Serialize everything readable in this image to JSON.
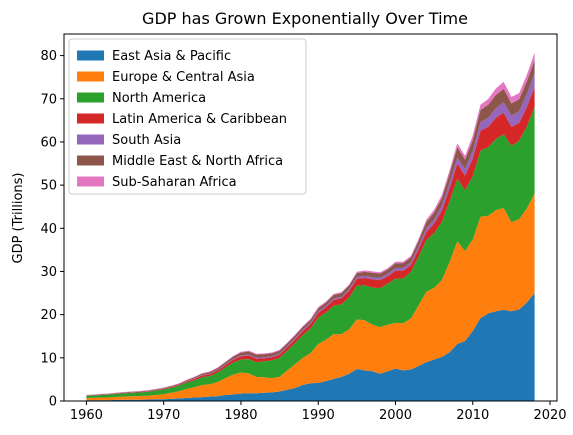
{
  "chart_data": {
    "type": "area",
    "stacked": true,
    "title": "GDP has Grown Exponentially Over Time",
    "xlabel": "",
    "ylabel": "GDP (Trillions)",
    "xlim": [
      1957.1,
      2020.9
    ],
    "ylim": [
      0,
      85
    ],
    "xticks": [
      1960,
      1970,
      1980,
      1990,
      2000,
      2010,
      2020
    ],
    "yticks": [
      0,
      10,
      20,
      30,
      40,
      50,
      60,
      70,
      80
    ],
    "legend_position": "upper-left",
    "grid": false,
    "x": [
      1960,
      1961,
      1962,
      1963,
      1964,
      1965,
      1966,
      1967,
      1968,
      1969,
      1970,
      1971,
      1972,
      1973,
      1974,
      1975,
      1976,
      1977,
      1978,
      1979,
      1980,
      1981,
      1982,
      1983,
      1984,
      1985,
      1986,
      1987,
      1988,
      1989,
      1990,
      1991,
      1992,
      1993,
      1994,
      1995,
      1996,
      1997,
      1998,
      1999,
      2000,
      2001,
      2002,
      2003,
      2004,
      2005,
      2006,
      2007,
      2008,
      2009,
      2010,
      2011,
      2012,
      2013,
      2014,
      2015,
      2016,
      2017,
      2018
    ],
    "series": [
      {
        "name": "East Asia & Pacific",
        "color": "#1f77b4",
        "values": [
          0.2,
          0.2,
          0.2,
          0.2,
          0.25,
          0.3,
          0.3,
          0.3,
          0.35,
          0.4,
          0.4,
          0.5,
          0.6,
          0.7,
          0.8,
          0.9,
          1.0,
          1.1,
          1.4,
          1.5,
          1.7,
          1.8,
          1.8,
          1.9,
          2.0,
          2.2,
          2.6,
          3.0,
          3.7,
          4.1,
          4.2,
          4.6,
          5.1,
          5.6,
          6.3,
          7.4,
          7.1,
          6.9,
          6.3,
          6.9,
          7.5,
          7.1,
          7.3,
          8.1,
          9.0,
          9.6,
          10.2,
          11.3,
          13.2,
          13.9,
          16.2,
          19.2,
          20.3,
          20.8,
          21.1,
          20.8,
          21.2,
          22.8,
          25.0
        ]
      },
      {
        "name": "Europe & Central Asia",
        "color": "#ff7f0e",
        "values": [
          0.5,
          0.55,
          0.6,
          0.65,
          0.7,
          0.75,
          0.8,
          0.85,
          0.9,
          1.0,
          1.2,
          1.4,
          1.7,
          2.1,
          2.4,
          2.8,
          2.9,
          3.3,
          3.9,
          4.6,
          4.9,
          4.6,
          3.8,
          3.6,
          3.3,
          3.4,
          4.5,
          5.5,
          6.3,
          7.0,
          9.0,
          9.6,
          10.4,
          9.9,
          10.3,
          11.5,
          11.6,
          10.8,
          10.8,
          10.8,
          10.6,
          10.9,
          11.8,
          14.1,
          16.3,
          16.6,
          17.8,
          20.9,
          23.8,
          20.8,
          21.2,
          23.5,
          22.6,
          23.4,
          23.6,
          20.6,
          20.9,
          21.8,
          23.1
        ]
      },
      {
        "name": "North America",
        "color": "#2ca02c",
        "values": [
          0.5,
          0.55,
          0.6,
          0.65,
          0.7,
          0.75,
          0.8,
          0.85,
          0.9,
          1.0,
          1.1,
          1.2,
          1.3,
          1.5,
          1.6,
          1.8,
          1.9,
          2.2,
          2.5,
          2.8,
          3.0,
          3.3,
          3.4,
          3.7,
          4.1,
          4.4,
          4.6,
          4.9,
          5.3,
          5.7,
          6.1,
          6.3,
          6.6,
          6.9,
          7.4,
          7.8,
          8.1,
          8.6,
          9.0,
          9.5,
          10.2,
          10.4,
          10.8,
          11.3,
          12.0,
          12.7,
          13.5,
          14.1,
          14.5,
          14.1,
          14.7,
          15.3,
          15.9,
          16.5,
          17.1,
          17.7,
          18.2,
          19.0,
          20.0
        ]
      },
      {
        "name": "Latin America & Caribbean",
        "color": "#d62728",
        "values": [
          0.08,
          0.09,
          0.1,
          0.1,
          0.11,
          0.12,
          0.13,
          0.14,
          0.15,
          0.16,
          0.18,
          0.2,
          0.22,
          0.28,
          0.35,
          0.4,
          0.45,
          0.5,
          0.55,
          0.65,
          0.75,
          0.85,
          0.8,
          0.7,
          0.72,
          0.75,
          0.8,
          0.85,
          0.9,
          1.0,
          1.1,
          1.2,
          1.3,
          1.4,
          1.5,
          1.6,
          1.7,
          1.9,
          1.9,
          1.7,
          1.9,
          1.8,
          1.6,
          1.7,
          1.9,
          2.2,
          2.6,
          3.0,
          3.5,
          3.4,
          4.0,
          4.6,
          4.7,
          4.9,
          5.0,
          4.4,
          4.1,
          4.5,
          4.6
        ]
      },
      {
        "name": "South Asia",
        "color": "#9467bd",
        "values": [
          0.05,
          0.05,
          0.06,
          0.06,
          0.07,
          0.07,
          0.07,
          0.07,
          0.08,
          0.08,
          0.08,
          0.09,
          0.09,
          0.1,
          0.11,
          0.12,
          0.12,
          0.13,
          0.15,
          0.17,
          0.2,
          0.22,
          0.23,
          0.24,
          0.25,
          0.26,
          0.28,
          0.3,
          0.32,
          0.34,
          0.36,
          0.34,
          0.35,
          0.36,
          0.39,
          0.44,
          0.47,
          0.5,
          0.52,
          0.56,
          0.6,
          0.62,
          0.65,
          0.75,
          0.85,
          0.95,
          1.1,
          1.3,
          1.4,
          1.5,
          1.8,
          2.0,
          2.1,
          2.2,
          2.4,
          2.6,
          2.7,
          3.0,
          3.2
        ]
      },
      {
        "name": "Middle East & North Africa",
        "color": "#8c564b",
        "values": [
          0.05,
          0.05,
          0.06,
          0.06,
          0.07,
          0.07,
          0.08,
          0.08,
          0.09,
          0.1,
          0.11,
          0.12,
          0.14,
          0.18,
          0.28,
          0.33,
          0.38,
          0.42,
          0.46,
          0.55,
          0.65,
          0.7,
          0.72,
          0.7,
          0.68,
          0.66,
          0.6,
          0.62,
          0.62,
          0.66,
          0.72,
          0.75,
          0.8,
          0.82,
          0.85,
          0.9,
          0.95,
          1.0,
          0.98,
          1.0,
          1.1,
          1.1,
          1.1,
          1.2,
          1.4,
          1.6,
          1.8,
          2.0,
          2.4,
          2.2,
          2.5,
          2.8,
          3.0,
          3.1,
          3.1,
          2.8,
          2.8,
          2.9,
          3.1
        ]
      },
      {
        "name": "Sub-Saharan Africa",
        "color": "#e377c2",
        "values": [
          0.03,
          0.03,
          0.03,
          0.04,
          0.04,
          0.04,
          0.04,
          0.05,
          0.05,
          0.05,
          0.06,
          0.06,
          0.07,
          0.08,
          0.1,
          0.11,
          0.12,
          0.13,
          0.15,
          0.17,
          0.2,
          0.2,
          0.19,
          0.18,
          0.17,
          0.17,
          0.17,
          0.19,
          0.2,
          0.21,
          0.25,
          0.26,
          0.26,
          0.25,
          0.24,
          0.3,
          0.32,
          0.33,
          0.32,
          0.32,
          0.35,
          0.34,
          0.37,
          0.45,
          0.55,
          0.63,
          0.72,
          0.82,
          0.9,
          0.87,
          1.1,
          1.2,
          1.35,
          1.5,
          1.6,
          1.5,
          1.4,
          1.55,
          1.65
        ]
      }
    ]
  }
}
